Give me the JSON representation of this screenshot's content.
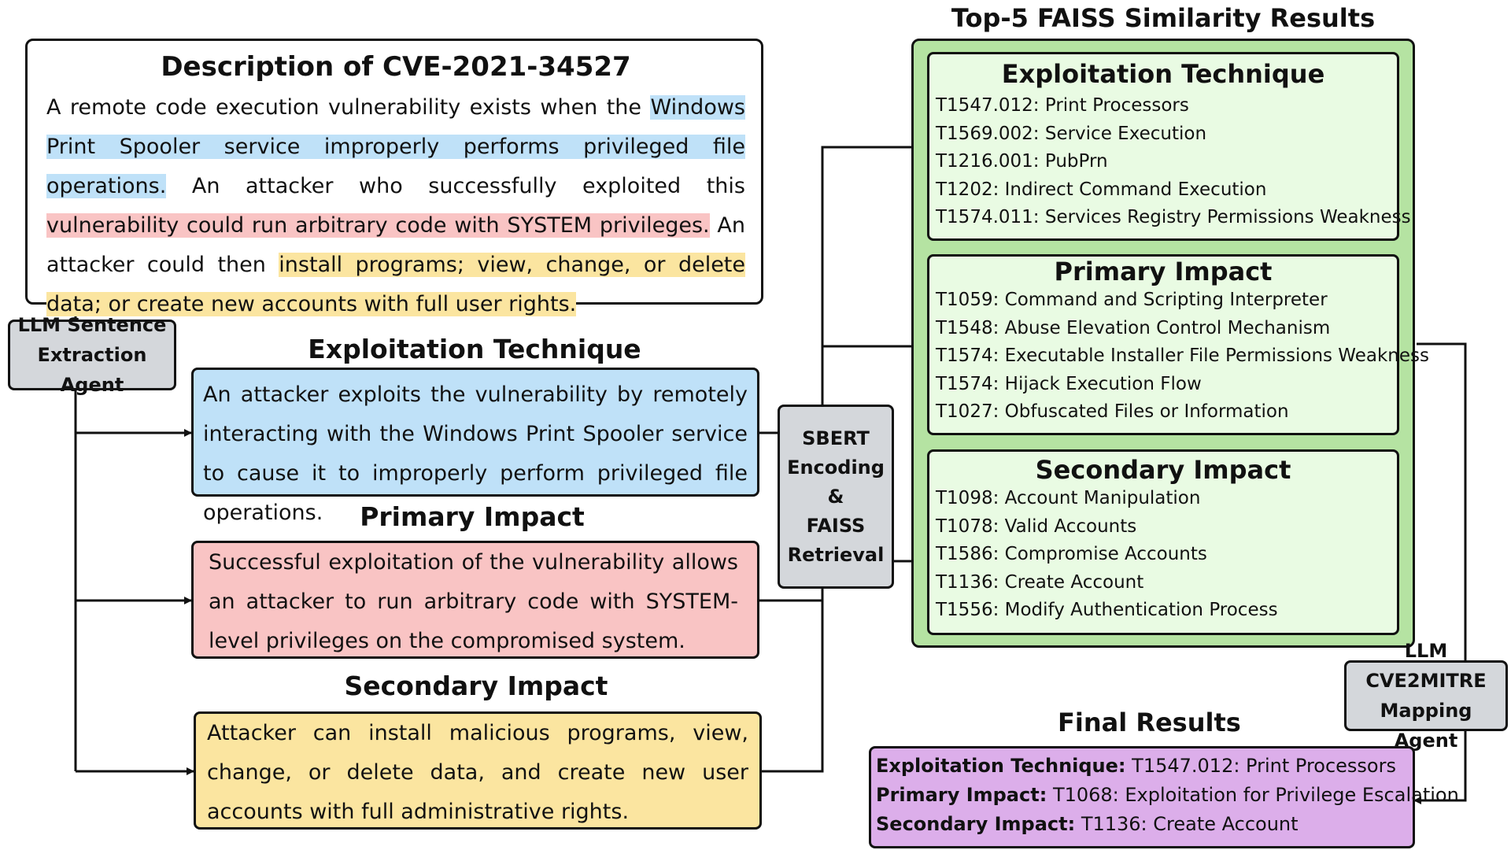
{
  "description": {
    "title": "Description of CVE-2021-34527",
    "seg1": "A remote code execution vulnerability exists when the ",
    "seg2": "Windows Print Spooler service improperly performs privileged file operations.",
    "seg3": " An attacker who successfully exploited this ",
    "seg4": "vulnerability could run arbitrary code with SYSTEM privileges.",
    "seg5": " An attacker could then ",
    "seg6": "install programs; view, change, or delete data; or create new accounts with full user rights."
  },
  "extraction_agent": {
    "line1": "LLM Sentence",
    "line2": "Extraction Agent"
  },
  "exploitation": {
    "title": "Exploitation Technique",
    "text": "An attacker exploits the vulnerability by remotely interacting with the Windows Print Spooler service to cause it to improperly perform privileged file operations."
  },
  "primary": {
    "title": "Primary Impact",
    "text": "Successful exploitation of the vulnerability allows an attacker to run arbitrary code with SYSTEM-level privileges on the compromised system."
  },
  "secondary": {
    "title": "Secondary Impact",
    "text": "Attacker can install malicious programs, view, change, or delete data, and create new user accounts with full administrative rights."
  },
  "sbert": {
    "line1": "SBERT",
    "line2": "Encoding &",
    "line3": "FAISS",
    "line4": "Retrieval"
  },
  "top5": {
    "title": "Top-5 FAISS Similarity Results",
    "groups": [
      {
        "title": "Exploitation Technique",
        "items": [
          "T1547.012: Print Processors",
          "T1569.002: Service Execution",
          "T1216.001: PubPrn",
          "T1202: Indirect Command Execution",
          "T1574.011: Services Registry Permissions Weakness"
        ]
      },
      {
        "title": "Primary Impact",
        "items": [
          "T1059: Command and Scripting Interpreter",
          "T1548: Abuse Elevation Control Mechanism",
          "T1574: Executable Installer File Permissions Weakness",
          "T1574: Hijack Execution Flow",
          "T1027: Obfuscated Files or Information"
        ]
      },
      {
        "title": "Secondary Impact",
        "items": [
          "T1098: Account Manipulation",
          "T1078: Valid Accounts",
          "T1586: Compromise Accounts",
          "T1136: Create Account",
          "T1556: Modify Authentication Process"
        ]
      }
    ]
  },
  "mapping_agent": {
    "line1": "LLM CVE2MITRE",
    "line2": "Mapping Agent"
  },
  "final": {
    "title": "Final Results",
    "rows": [
      {
        "label": "Exploitation Technique:",
        "value": " T1547.012: Print Processors"
      },
      {
        "label": "Primary Impact:",
        "value": " T1068: Exploitation for Privilege Escalation"
      },
      {
        "label": "Secondary Impact:",
        "value": " T1136: Create Account"
      }
    ]
  },
  "colors": {
    "blue": "#bfe1f8",
    "red": "#f9c4c4",
    "yellow": "#fbe5a0",
    "green_outer": "#b5e3a2",
    "green_inner": "#e9fbe3",
    "agent_gray": "#d4d7db",
    "final_purple": "#dcaeea"
  }
}
